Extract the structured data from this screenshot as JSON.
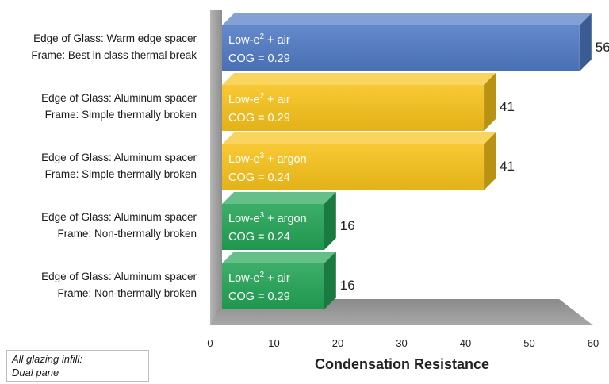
{
  "chart_data": {
    "type": "bar",
    "orientation": "horizontal",
    "title": "",
    "xlabel": "Condensation Resistance",
    "ylabel": "",
    "xlim": [
      0,
      60
    ],
    "x_ticks": [
      "0",
      "10",
      "20",
      "30",
      "40",
      "50",
      "60"
    ],
    "grid": false,
    "bars": [
      {
        "category_lines": [
          "Edge of Glass: Warm edge spacer",
          "Frame:  Best in class thermal break"
        ],
        "text_base": "Low-e",
        "text_sup": "2",
        "text_rest": " + air",
        "cog": "COG = 0.29",
        "value": 56,
        "value_label": "56",
        "color": "#4f79c4"
      },
      {
        "category_lines": [
          "Edge of Glass: Aluminum spacer",
          "Frame:  Simple thermally broken"
        ],
        "text_base": "Low-e",
        "text_sup": "2",
        "text_rest": " + air",
        "cog": "COG = 0.29",
        "value": 41,
        "value_label": "41",
        "color": "#f7c21a"
      },
      {
        "category_lines": [
          "Edge of Glass: Aluminum spacer",
          "Frame:  Simple thermally broken"
        ],
        "text_base": "Low-e",
        "text_sup": "3",
        "text_rest": " + argon",
        "cog": "COG = 0.24",
        "value": 41,
        "value_label": "41",
        "color": "#f7c21a"
      },
      {
        "category_lines": [
          "Edge of Glass: Aluminum spacer",
          "Frame:  Non-thermally broken"
        ],
        "text_base": "Low-e",
        "text_sup": "3",
        "text_rest": " + argon",
        "cog": "COG = 0.24",
        "value": 16,
        "value_label": "16",
        "color": "#22a355"
      },
      {
        "category_lines": [
          "Edge of Glass: Aluminum spacer",
          "Frame:  Non-thermally broken"
        ],
        "text_base": "Low-e",
        "text_sup": "2",
        "text_rest": " + air",
        "cog": "COG = 0.29",
        "value": 16,
        "value_label": "16",
        "color": "#22a355"
      }
    ]
  },
  "note": {
    "line1": "All glazing infill:",
    "line2": "Dual pane"
  }
}
